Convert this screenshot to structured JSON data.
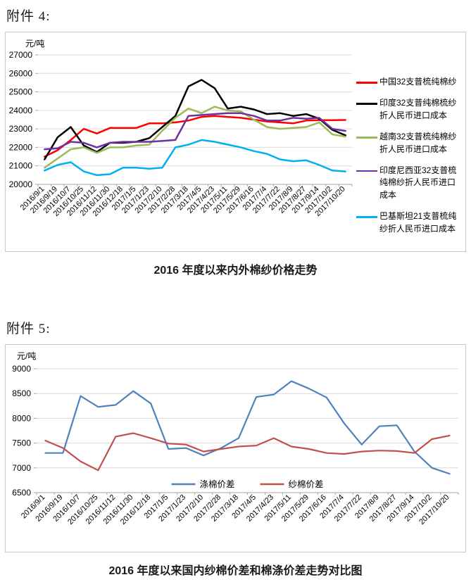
{
  "page": {
    "attachment4_heading": "附件 4:",
    "attachment5_heading": "附件 5:"
  },
  "chart_data": [
    {
      "type": "line",
      "title": "2016 年度以来内外棉纱价格走势",
      "unit_label": "元/吨",
      "xlabel": "",
      "ylabel": "元/吨",
      "ylim": [
        20000,
        27000
      ],
      "ystep": 1000,
      "grid": true,
      "legend_position": "right",
      "categories": [
        "2016/9/1",
        "2016/9/19",
        "2016/10/7",
        "2016/10/25",
        "2016/11/12",
        "2016/11/30",
        "2016/12/18",
        "2017/1/5",
        "2017/1/23",
        "2017/2/10",
        "2017/2/28",
        "2017/3/18",
        "2017/4/5",
        "2017/4/23",
        "2017/5/11",
        "2017/5/29",
        "2017/6/16",
        "2017/7/4",
        "2017/7/22",
        "2017/8/9",
        "2017/8/27",
        "2017/9/14",
        "2017/10/2",
        "2017/10/20"
      ],
      "series": [
        {
          "name": "中国32支普梳纯棉纱",
          "color": "#FF0000",
          "values": [
            21500,
            21850,
            22400,
            23000,
            22750,
            23050,
            23050,
            23050,
            23300,
            23300,
            23350,
            23450,
            23650,
            23700,
            23650,
            23600,
            23500,
            23400,
            23350,
            23300,
            23450,
            23470,
            23470,
            23480
          ]
        },
        {
          "name": "印度32支普纯棉梳纱折人民币进口成本",
          "color": "#000000",
          "values": [
            21350,
            22550,
            23100,
            22100,
            21750,
            22250,
            22250,
            22300,
            22500,
            23100,
            23700,
            25300,
            25650,
            25200,
            24100,
            24200,
            24050,
            23800,
            23850,
            23700,
            23800,
            23550,
            22950,
            22650
          ]
        },
        {
          "name": "越南32支普梳纯棉纱折人民币进口成本",
          "color": "#9BBB59",
          "values": [
            20900,
            21400,
            21900,
            22000,
            21700,
            22000,
            22000,
            22100,
            22150,
            22900,
            23600,
            24100,
            23850,
            24200,
            24000,
            23950,
            23500,
            23100,
            23000,
            23050,
            23100,
            23350,
            22700,
            22580
          ]
        },
        {
          "name": "印度尼西亚32支普梳纯棉纱折人民币进口成本",
          "color": "#7030A0",
          "values": [
            21900,
            21950,
            22300,
            22250,
            22000,
            22250,
            22300,
            22300,
            22300,
            22350,
            22400,
            23700,
            23750,
            23800,
            23850,
            23850,
            23700,
            23450,
            23450,
            23600,
            23550,
            23600,
            23000,
            22890
          ]
        },
        {
          "name": "巴基斯坦21支普梳纯纱折人民币进口成本",
          "color": "#00B0F0",
          "values": [
            20750,
            21050,
            21200,
            20700,
            20500,
            20550,
            20900,
            20900,
            20850,
            20900,
            22000,
            22150,
            22400,
            22300,
            22150,
            22000,
            21800,
            21650,
            21350,
            21250,
            21300,
            21050,
            20750,
            20700
          ]
        }
      ]
    },
    {
      "type": "line",
      "title": "2016 年度以来国内纱棉价差和棉涤价差走势对比图",
      "unit_label": "元/吨",
      "xlabel": "",
      "ylabel": "元/吨",
      "ylim": [
        6500,
        9000
      ],
      "ystep": 500,
      "grid": true,
      "legend_position": "bottom",
      "categories": [
        "2016/9/1",
        "2016/9/19",
        "2016/10/7",
        "2016/10/25",
        "2016/11/12",
        "2016/11/30",
        "2016/12/18",
        "2017/1/5",
        "2017/1/23",
        "2017/2/10",
        "2017/2/28",
        "2017/3/18",
        "2017/4/5",
        "2017/4/23",
        "2017/5/11",
        "2017/5/29",
        "2017/6/16",
        "2017/7/4",
        "2017/7/22",
        "2017/8/9",
        "2017/8/27",
        "2017/9/14",
        "2017/10/2",
        "2017/10/20"
      ],
      "series": [
        {
          "name": "涤棉价差",
          "color": "#4F81BD",
          "values": [
            7300,
            7300,
            8450,
            8230,
            8270,
            8550,
            8300,
            7380,
            7400,
            7250,
            7400,
            7600,
            8430,
            8480,
            8750,
            8600,
            8420,
            7900,
            7470,
            7840,
            7860,
            7330,
            7000,
            6880
          ]
        },
        {
          "name": "纱棉价差",
          "color": "#C0504D",
          "values": [
            7550,
            7400,
            7130,
            6950,
            7630,
            7700,
            7600,
            7490,
            7470,
            7330,
            7380,
            7430,
            7450,
            7600,
            7430,
            7380,
            7300,
            7280,
            7330,
            7350,
            7340,
            7300,
            7580,
            7650
          ]
        }
      ]
    }
  ]
}
